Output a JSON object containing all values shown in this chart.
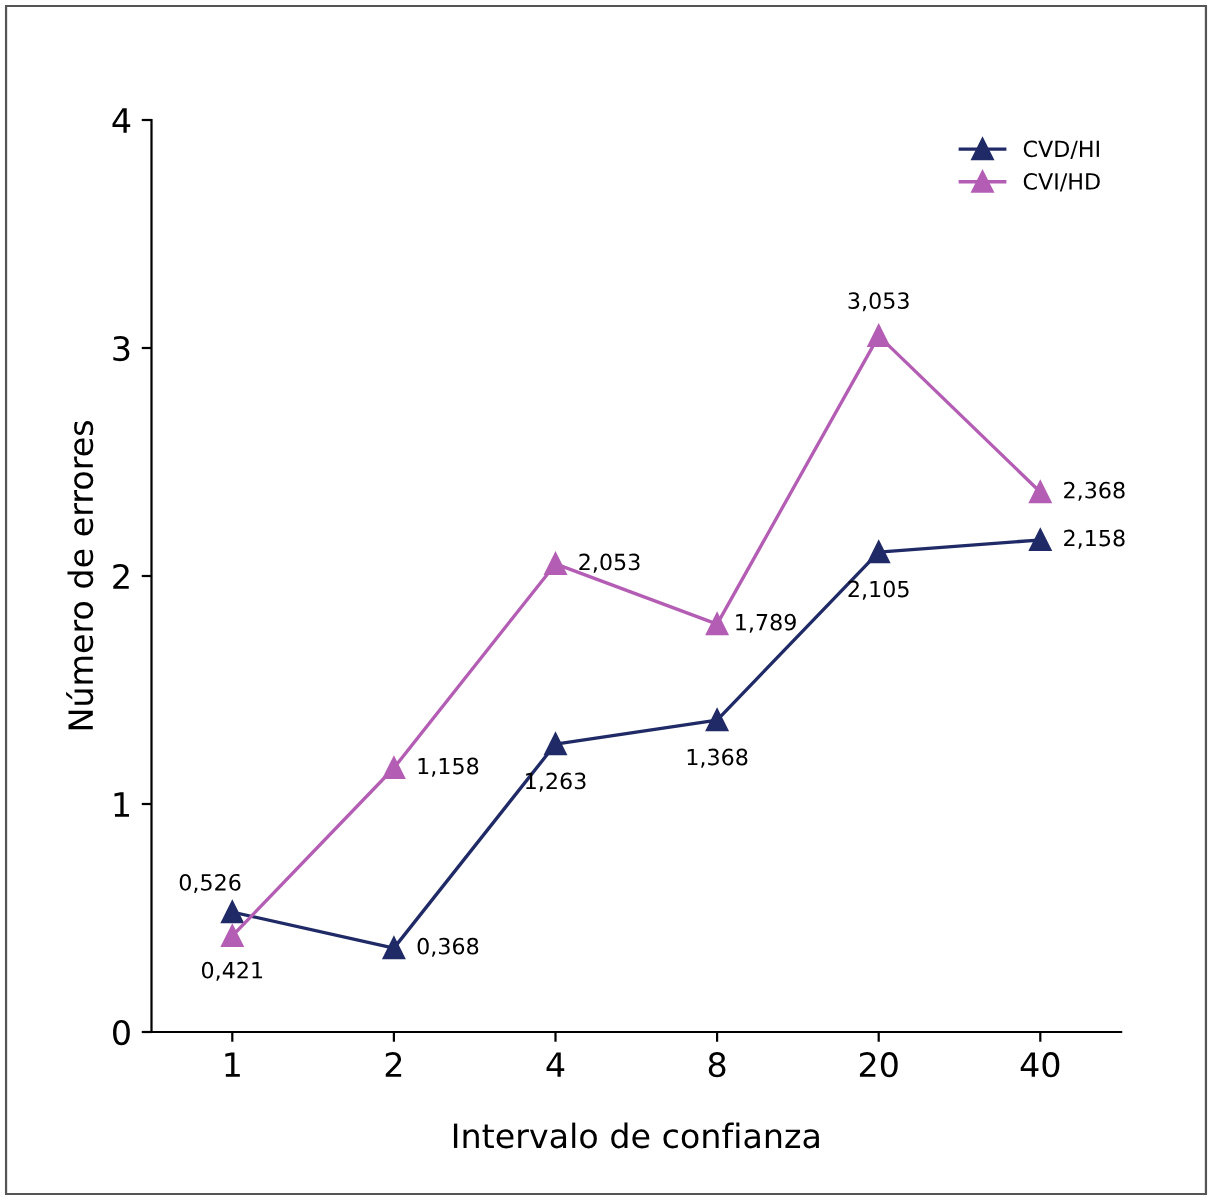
{
  "chart_data": {
    "type": "line",
    "xlabel": "Intervalo de confianza",
    "ylabel": "Número de errores",
    "categories": [
      "1",
      "2",
      "4",
      "8",
      "20",
      "40"
    ],
    "ylim": [
      0,
      4
    ],
    "yticks": [
      0,
      1,
      2,
      3,
      4
    ],
    "grid": false,
    "legend": "top right",
    "marker": "triangle",
    "line_style": "solid",
    "series": [
      {
        "name": "CVD/HI",
        "color": "#1f2a66",
        "values": [
          0.526,
          0.368,
          1.263,
          1.368,
          2.105,
          2.158
        ],
        "value_labels": [
          "0,526",
          "0,368",
          "1,263",
          "1,368",
          "2,105",
          "2,158"
        ]
      },
      {
        "name": "CVI/HD",
        "color": "#b45db4",
        "values": [
          0.421,
          1.158,
          2.053,
          1.789,
          3.053,
          2.368
        ],
        "value_labels": [
          "0,421",
          "1,158",
          "2,053",
          "1,789",
          "3,053",
          "2,368"
        ]
      }
    ]
  }
}
